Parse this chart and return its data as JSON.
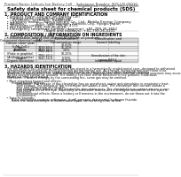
{
  "title": "Safety data sheet for chemical products (SDS)",
  "header_left": "Product Name: Lithium Ion Battery Cell",
  "header_right_line1": "Substance Number: SDS-LIB-00010",
  "header_right_line2": "Established / Revision: Dec.1.2010",
  "section1_title": "1. PRODUCT AND COMPANY IDENTIFICATION",
  "section1_lines": [
    "  • Product name: Lithium Ion Battery Cell",
    "  • Product code: Cylindrical-type cell",
    "       SV18650L, SV18650L, SV18650A",
    "  • Company name:    Sanyo Electric Co., Ltd., Mobile Energy Company",
    "  • Address:         2001, Kamishinden, Sumoto-City, Hyogo, Japan",
    "  • Telephone number:  +81-799-26-4111",
    "  • Fax number:  +81-799-26-4129",
    "  • Emergency telephone number (daytime): +81-799-26-3662",
    "                                    (Night and holidays): +81-799-26-4101"
  ],
  "section2_title": "2. COMPOSITION / INFORMATION ON INGREDIENTS",
  "section2_intro": "  • Substance or preparation: Preparation",
  "section2_sub": "  • Information about the chemical nature of product:",
  "table_col_headers": [
    "Component chemical name",
    "CAS number",
    "Concentration /\nConcentration range",
    "Classification and\nhazard labeling"
  ],
  "table_rows": [
    [
      "Lithium cobalt oxide\n(LiMn CoO₂)",
      "-",
      "30-60%",
      "-"
    ],
    [
      "Iron",
      "7439-89-6",
      "15-20%",
      "-"
    ],
    [
      "Aluminum",
      "7429-90-5",
      "2-6%",
      "-"
    ],
    [
      "Graphite\n(Flake or graphite)\n(Artificial graphite)",
      "7782-42-5\n7782-43-2",
      "10-20%",
      "-"
    ],
    [
      "Copper",
      "7440-50-8",
      "5-15%",
      "Sensitization of the skin\ngroup R43.2"
    ],
    [
      "Organic electrolyte",
      "-",
      "10-20%",
      "Inflammable liquid"
    ]
  ],
  "section3_title": "3. HAZARDS IDENTIFICATION",
  "section3_body": [
    "   For the battery cell, chemical substances are stored in a hermetically sealed metal case, designed to withstand",
    "   temperatures and physical-shock-protection during normal use. As a result, during normal use, there is no",
    "   physical danger of ignition or explosion and there is no danger of hazardous materials leakage.",
    "   However, if exposed to a fire, added mechanical shocks, decomposes, which internal chemical reactions may occur.",
    "   As gas release cannot be avoided. The battery cell case will be breached or fire polaires. hazardous",
    "   materials may be released.",
    "   Moreover, if heated strongly by the surrounding fire, some gas may be emitted.",
    "",
    "  • Most important hazard and effects:",
    "       Human health effects:",
    "            Inhalation: The release of the electrolyte has an anesthesia action and stimulates in respiratory tract.",
    "            Skin contact: The release of the electrolyte stimulates a skin. The electrolyte skin contact causes a",
    "            sore and stimulation on the skin.",
    "            Eye contact: The release of the electrolyte stimulates eyes. The electrolyte eye contact causes a sore",
    "            and stimulation on the eye. Especially, a substance that causes a strong inflammation of the eyes is",
    "            contained.",
    "            Environmental effects: Since a battery cell remains in the environment, do not throw out it into the",
    "            environment.",
    "",
    "  • Specific hazards:",
    "       If the electrolyte contacts with water, it will generate detrimental hydrogen fluoride.",
    "       Since the said electrolyte is inflammable liquid, do not bring close to fire."
  ],
  "bg_color": "#ffffff",
  "text_color": "#000000",
  "table_header_bg": "#d8d8d8",
  "table_row_bg1": "#f5f5f5",
  "table_row_bg2": "#ffffff",
  "line_color": "#999999",
  "header_text_color": "#444444"
}
